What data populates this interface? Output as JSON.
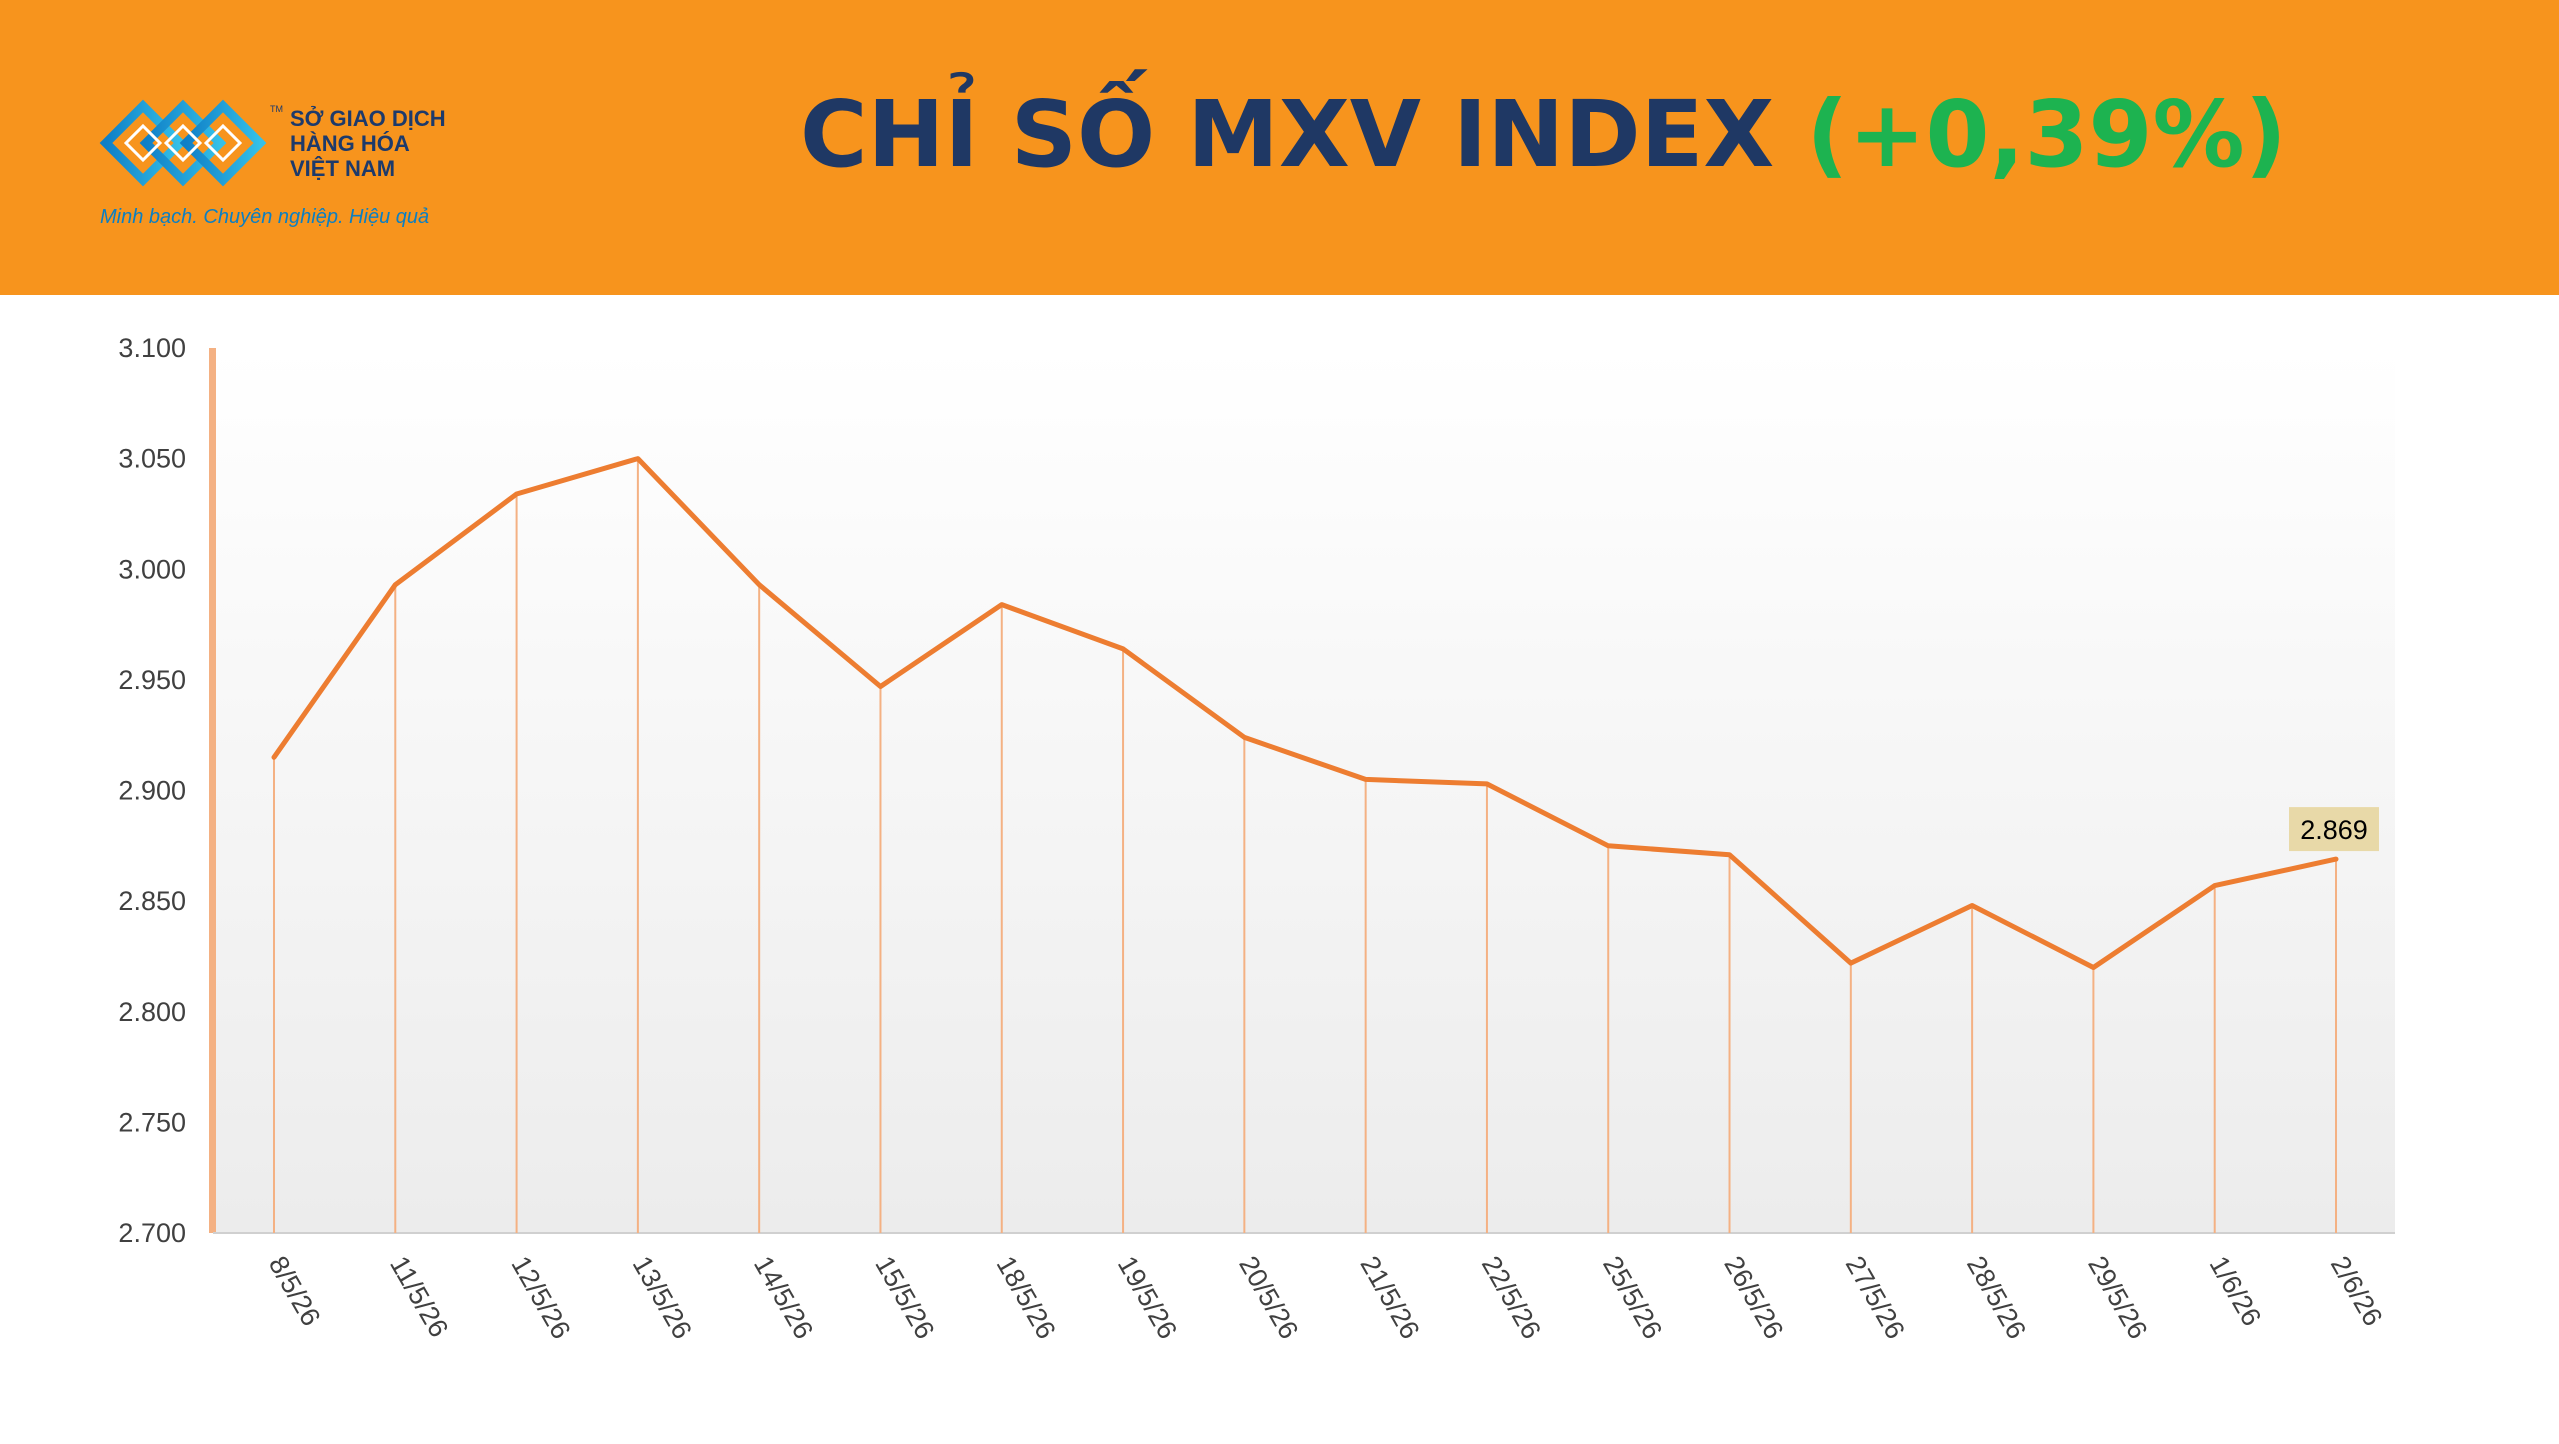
{
  "header": {
    "logo": {
      "name_lines": [
        "SỞ GIAO DỊCH",
        "HÀNG HÓA",
        "VIỆT NAM"
      ],
      "tm": "TM",
      "tagline": "Minh bạch. Chuyên nghiệp. Hiệu quả"
    },
    "title_text": "CHỈ SỐ MXV INDEX",
    "title_change": "(+0,39%)"
  },
  "colors": {
    "header_bg": "#f7941d",
    "title": "#1f3864",
    "change_positive": "#1db350",
    "line": "#ed7d31",
    "drop_lines": "#f4b183",
    "label_bg": "#e8d9a8"
  },
  "chart_data": {
    "type": "line",
    "categories": [
      "8/5/26",
      "11/5/26",
      "12/5/26",
      "13/5/26",
      "14/5/26",
      "15/5/26",
      "18/5/26",
      "19/5/26",
      "20/5/26",
      "21/5/26",
      "22/5/26",
      "25/5/26",
      "26/5/26",
      "27/5/26",
      "28/5/26",
      "29/5/26",
      "1/6/26",
      "2/6/26"
    ],
    "series": [
      {
        "values": [
          2915,
          2993,
          3034,
          3050,
          2993,
          2947,
          2984,
          2964,
          2924,
          2905,
          2903,
          2875,
          2871,
          2822,
          2848,
          2820,
          2857,
          2869
        ]
      }
    ],
    "yticks": [
      "3.100",
      "3.050",
      "3.000",
      "2.950",
      "2.900",
      "2.850",
      "2.800",
      "2.750",
      "2.700"
    ],
    "ylim": [
      2700,
      3100
    ],
    "last_label": "2.869",
    "drop_lines": true,
    "grid": false,
    "legend": "none",
    "background": "gradient white to light gray"
  }
}
